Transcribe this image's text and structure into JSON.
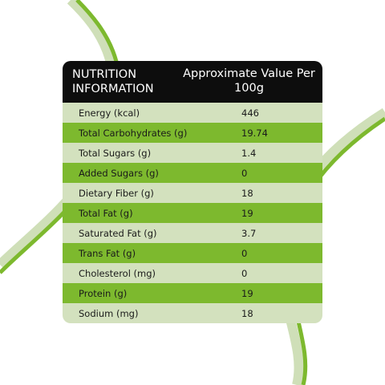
{
  "header": {
    "col1": "NUTRITION INFORMATION",
    "col2": "Approximate Value Per 100g"
  },
  "rows": [
    [
      "Energy (kcal)",
      446
    ],
    [
      "Total Carbohydrates (g)",
      19.74
    ],
    [
      "Total Sugars (g)",
      1.4
    ],
    [
      "Added Sugars (g)",
      0
    ],
    [
      "Dietary Fiber (g)",
      18
    ],
    [
      "Total Fat (g)",
      19
    ],
    [
      "Saturated Fat (g)",
      3.7
    ],
    [
      "Trans Fat (g)",
      0
    ],
    [
      "Cholesterol (mg)",
      0
    ],
    [
      "Protein (g)",
      19
    ],
    [
      "Sodium (mg)",
      18
    ]
  ]
}
